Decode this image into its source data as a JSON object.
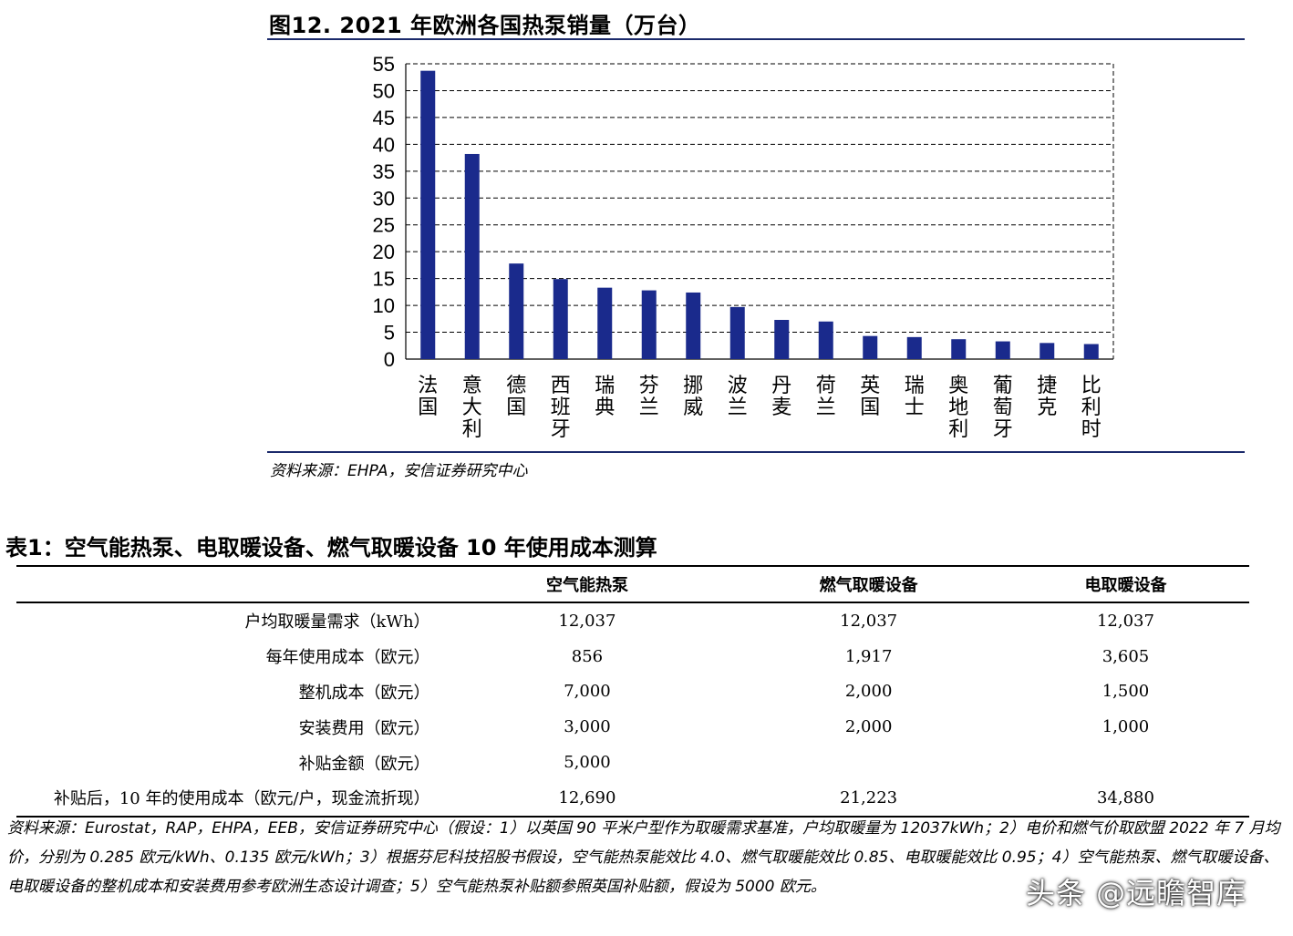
{
  "figure": {
    "title": "图12. 2021 年欧洲各国热泵销量（万台）",
    "source": "资料来源：EHPA，安信证券研究中心"
  },
  "chart_data": {
    "type": "bar",
    "categories": [
      "法国",
      "意大利",
      "德国",
      "西班牙",
      "瑞典",
      "芬兰",
      "挪威",
      "波兰",
      "丹麦",
      "荷兰",
      "英国",
      "瑞士",
      "奥地利",
      "葡萄牙",
      "捷克",
      "比利时"
    ],
    "values": [
      53.7,
      38.2,
      17.8,
      14.9,
      13.3,
      12.8,
      12.4,
      9.7,
      7.3,
      7.0,
      4.3,
      4.1,
      3.7,
      3.3,
      3.0,
      2.8
    ],
    "title": "图12. 2021 年欧洲各国热泵销量（万台）",
    "xlabel": "",
    "ylabel": "",
    "ylim": [
      0,
      55
    ],
    "yticks": [
      "0",
      "5",
      "10",
      "15",
      "20",
      "25",
      "30",
      "35",
      "40",
      "45",
      "50",
      "55"
    ],
    "grid": true,
    "color": "#1a2a8c"
  },
  "table": {
    "title": "表1：空气能热泵、电取暖设备、燃气取暖设备 10 年使用成本测算",
    "headers": [
      "",
      "空气能热泵",
      "燃气取暖设备",
      "电取暖设备"
    ],
    "rows": [
      [
        "户均取暖量需求（kWh）",
        "12,037",
        "12,037",
        "12,037"
      ],
      [
        "每年使用成本（欧元）",
        "856",
        "1,917",
        "3,605"
      ],
      [
        "整机成本（欧元）",
        "7,000",
        "2,000",
        "1,500"
      ],
      [
        "安装费用（欧元）",
        "3,000",
        "2,000",
        "1,000"
      ],
      [
        "补贴金额（欧元）",
        "5,000",
        "",
        ""
      ],
      [
        "补贴后，10 年的使用成本（欧元/户，现金流折现）",
        "12,690",
        "21,223",
        "34,880"
      ]
    ],
    "note": "资料来源：Eurostat，RAP，EHPA，EEB，安信证券研究中心（假设：1）以英国 90 平米户型作为取暖需求基准，户均取暖量为 12037kWh；2）电价和燃气价取欧盟 2022 年 7 月均价，分别为 0.285 欧元/kWh、0.135 欧元/kWh；3）根据芬尼科技招股书假设，空气能热泵能效比 4.0、燃气取暖能效比 0.85、电取暖能效比 0.95；4）空气能热泵、燃气取暖设备、电取暖设备的整机成本和安装费用参考欧洲生态设计调查；5）空气能热泵补贴额参照英国补贴额，假设为 5000 欧元。"
  },
  "watermark": "头条 @远瞻智库"
}
